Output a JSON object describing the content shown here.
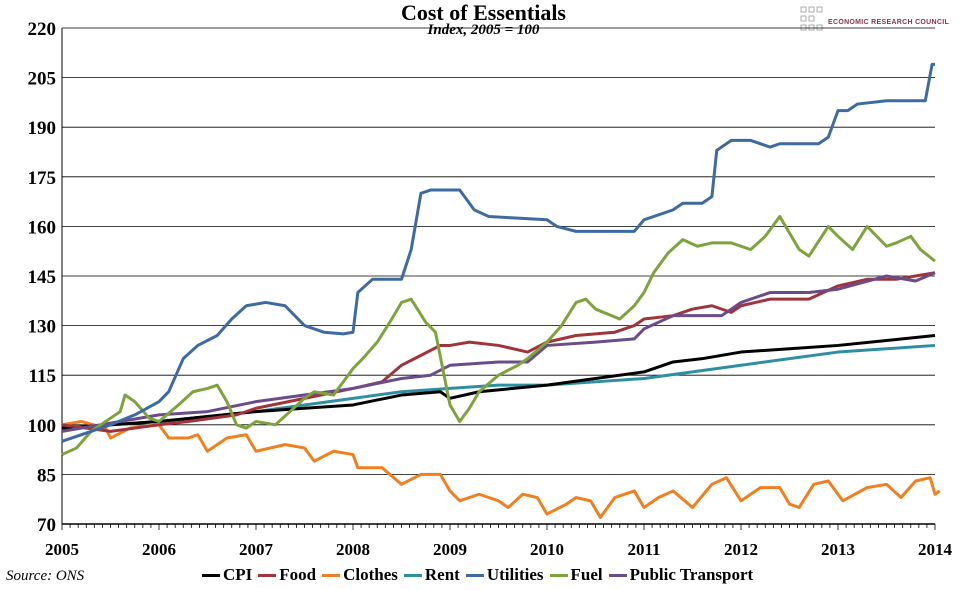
{
  "chart_data": {
    "type": "line",
    "title": "Cost of Essentials",
    "subtitle": "Index, 2005 = 100",
    "source": "Source: ONS",
    "logo_text": "ECONOMIC RESEARCH COUNCIL",
    "xlim": [
      2005,
      2014
    ],
    "ylim": [
      70,
      220
    ],
    "yticks": [
      70,
      85,
      100,
      115,
      130,
      145,
      160,
      175,
      190,
      205,
      220
    ],
    "xticks": [
      2005,
      2006,
      2007,
      2008,
      2009,
      2010,
      2011,
      2012,
      2013,
      2014
    ],
    "grid": "horizontal",
    "legend_position": "bottom",
    "series": [
      {
        "name": "CPI",
        "color": "#000000",
        "points": [
          [
            2005,
            99
          ],
          [
            2006,
            101
          ],
          [
            2007,
            104
          ],
          [
            2007.5,
            105
          ],
          [
            2008,
            106
          ],
          [
            2008.5,
            109
          ],
          [
            2008.9,
            110
          ],
          [
            2009,
            108
          ],
          [
            2009.3,
            110
          ],
          [
            2010,
            112
          ],
          [
            2010.5,
            114
          ],
          [
            2011,
            116
          ],
          [
            2011.3,
            119
          ],
          [
            2011.6,
            120
          ],
          [
            2012,
            122
          ],
          [
            2012.5,
            123
          ],
          [
            2013,
            124
          ],
          [
            2013.5,
            125.5
          ],
          [
            2014,
            127
          ]
        ]
      },
      {
        "name": "Food",
        "color": "#a0343b",
        "points": [
          [
            2005,
            100
          ],
          [
            2005.5,
            98
          ],
          [
            2006,
            100
          ],
          [
            2006.3,
            101
          ],
          [
            2006.8,
            103
          ],
          [
            2007,
            105
          ],
          [
            2007.5,
            108
          ],
          [
            2008,
            111
          ],
          [
            2008.3,
            113
          ],
          [
            2008.5,
            118
          ],
          [
            2008.7,
            121
          ],
          [
            2008.9,
            124
          ],
          [
            2009,
            124
          ],
          [
            2009.2,
            125
          ],
          [
            2009.5,
            124
          ],
          [
            2009.8,
            122
          ],
          [
            2010,
            125
          ],
          [
            2010.3,
            127
          ],
          [
            2010.7,
            128
          ],
          [
            2010.9,
            130
          ],
          [
            2011,
            132
          ],
          [
            2011.3,
            133
          ],
          [
            2011.5,
            135
          ],
          [
            2011.7,
            136
          ],
          [
            2011.9,
            134
          ],
          [
            2012,
            136
          ],
          [
            2012.3,
            138
          ],
          [
            2012.7,
            138
          ],
          [
            2013,
            142
          ],
          [
            2013.3,
            144
          ],
          [
            2013.6,
            144
          ],
          [
            2013.8,
            145
          ],
          [
            2014,
            146
          ]
        ]
      },
      {
        "name": "Clothes",
        "color": "#f07f1f",
        "points": [
          [
            2005,
            100
          ],
          [
            2005.2,
            101
          ],
          [
            2005.45,
            99
          ],
          [
            2005.5,
            96
          ],
          [
            2005.7,
            99
          ],
          [
            2006,
            100
          ],
          [
            2006.1,
            96
          ],
          [
            2006.3,
            96
          ],
          [
            2006.4,
            97
          ],
          [
            2006.5,
            92
          ],
          [
            2006.7,
            96
          ],
          [
            2006.9,
            97
          ],
          [
            2007,
            92
          ],
          [
            2007.3,
            94
          ],
          [
            2007.5,
            93
          ],
          [
            2007.6,
            89
          ],
          [
            2007.8,
            92
          ],
          [
            2008,
            91
          ],
          [
            2008.05,
            87
          ],
          [
            2008.3,
            87
          ],
          [
            2008.5,
            82
          ],
          [
            2008.7,
            85
          ],
          [
            2008.9,
            85
          ],
          [
            2009,
            80
          ],
          [
            2009.1,
            77
          ],
          [
            2009.3,
            79
          ],
          [
            2009.5,
            77
          ],
          [
            2009.6,
            75
          ],
          [
            2009.75,
            79
          ],
          [
            2009.9,
            78
          ],
          [
            2010,
            73
          ],
          [
            2010.2,
            76
          ],
          [
            2010.3,
            78
          ],
          [
            2010.45,
            77
          ],
          [
            2010.55,
            72
          ],
          [
            2010.7,
            78
          ],
          [
            2010.9,
            80
          ],
          [
            2011,
            75
          ],
          [
            2011.15,
            78
          ],
          [
            2011.3,
            80
          ],
          [
            2011.5,
            75
          ],
          [
            2011.7,
            82
          ],
          [
            2011.85,
            84
          ],
          [
            2012,
            77
          ],
          [
            2012.2,
            81
          ],
          [
            2012.4,
            81
          ],
          [
            2012.5,
            76
          ],
          [
            2012.6,
            75
          ],
          [
            2012.75,
            82
          ],
          [
            2012.9,
            83
          ],
          [
            2013.05,
            77
          ],
          [
            2013.3,
            81
          ],
          [
            2013.5,
            82
          ],
          [
            2013.65,
            78
          ],
          [
            2013.8,
            83
          ],
          [
            2013.95,
            84
          ],
          [
            2014,
            79
          ],
          [
            2014.05,
            80
          ]
        ]
      },
      {
        "name": "Rent",
        "color": "#2e8fa3",
        "points": [
          [
            2005,
            99
          ],
          [
            2006,
            101
          ],
          [
            2007,
            104
          ],
          [
            2007.5,
            106
          ],
          [
            2008,
            108
          ],
          [
            2008.5,
            110
          ],
          [
            2009,
            111
          ],
          [
            2009.5,
            112
          ],
          [
            2010,
            112
          ],
          [
            2010.5,
            113
          ],
          [
            2011,
            114
          ],
          [
            2011.5,
            116
          ],
          [
            2012,
            118
          ],
          [
            2012.5,
            120
          ],
          [
            2013,
            122
          ],
          [
            2013.5,
            123
          ],
          [
            2014,
            124
          ]
        ]
      },
      {
        "name": "Utilities",
        "color": "#3d6aa0",
        "points": [
          [
            2005,
            95
          ],
          [
            2005.5,
            100
          ],
          [
            2005.75,
            103
          ],
          [
            2006,
            107
          ],
          [
            2006.1,
            110
          ],
          [
            2006.25,
            120
          ],
          [
            2006.4,
            124
          ],
          [
            2006.6,
            127
          ],
          [
            2006.75,
            132
          ],
          [
            2006.9,
            136
          ],
          [
            2007.1,
            137
          ],
          [
            2007.3,
            136
          ],
          [
            2007.5,
            130
          ],
          [
            2007.7,
            128
          ],
          [
            2007.9,
            127.5
          ],
          [
            2008,
            128
          ],
          [
            2008.05,
            140
          ],
          [
            2008.2,
            144
          ],
          [
            2008.5,
            144
          ],
          [
            2008.6,
            153
          ],
          [
            2008.7,
            170
          ],
          [
            2008.8,
            171
          ],
          [
            2009.1,
            171
          ],
          [
            2009.25,
            165
          ],
          [
            2009.4,
            163
          ],
          [
            2009.7,
            162.5
          ],
          [
            2010,
            162
          ],
          [
            2010.1,
            160
          ],
          [
            2010.3,
            158.5
          ],
          [
            2010.9,
            158.5
          ],
          [
            2011,
            162
          ],
          [
            2011.3,
            165
          ],
          [
            2011.4,
            167
          ],
          [
            2011.6,
            167
          ],
          [
            2011.7,
            169
          ],
          [
            2011.75,
            183
          ],
          [
            2011.9,
            186
          ],
          [
            2012.1,
            186
          ],
          [
            2012.3,
            184
          ],
          [
            2012.4,
            185
          ],
          [
            2012.8,
            185
          ],
          [
            2012.9,
            187
          ],
          [
            2013,
            195
          ],
          [
            2013.1,
            195
          ],
          [
            2013.2,
            197
          ],
          [
            2013.5,
            198
          ],
          [
            2013.9,
            198
          ],
          [
            2013.97,
            209
          ],
          [
            2014,
            209
          ]
        ]
      },
      {
        "name": "Fuel",
        "color": "#7ea33c",
        "points": [
          [
            2005,
            91
          ],
          [
            2005.15,
            93
          ],
          [
            2005.3,
            98
          ],
          [
            2005.5,
            102
          ],
          [
            2005.6,
            104
          ],
          [
            2005.65,
            109
          ],
          [
            2005.75,
            107
          ],
          [
            2005.9,
            102
          ],
          [
            2006,
            101
          ],
          [
            2006.2,
            106
          ],
          [
            2006.35,
            110
          ],
          [
            2006.5,
            111
          ],
          [
            2006.6,
            112
          ],
          [
            2006.7,
            107
          ],
          [
            2006.8,
            100
          ],
          [
            2006.9,
            99
          ],
          [
            2007,
            101
          ],
          [
            2007.2,
            100
          ],
          [
            2007.35,
            104
          ],
          [
            2007.5,
            108
          ],
          [
            2007.6,
            110
          ],
          [
            2007.8,
            109
          ],
          [
            2008,
            117
          ],
          [
            2008.1,
            120
          ],
          [
            2008.25,
            125
          ],
          [
            2008.4,
            132
          ],
          [
            2008.5,
            137
          ],
          [
            2008.6,
            138
          ],
          [
            2008.75,
            131
          ],
          [
            2008.85,
            128
          ],
          [
            2009,
            106
          ],
          [
            2009.1,
            101
          ],
          [
            2009.2,
            105
          ],
          [
            2009.3,
            110
          ],
          [
            2009.5,
            115
          ],
          [
            2009.7,
            118
          ],
          [
            2009.8,
            120
          ],
          [
            2010,
            125
          ],
          [
            2010.15,
            130
          ],
          [
            2010.3,
            137
          ],
          [
            2010.4,
            138
          ],
          [
            2010.5,
            135
          ],
          [
            2010.75,
            132
          ],
          [
            2010.9,
            136
          ],
          [
            2011,
            140
          ],
          [
            2011.1,
            146
          ],
          [
            2011.25,
            152
          ],
          [
            2011.4,
            156
          ],
          [
            2011.55,
            154
          ],
          [
            2011.7,
            155
          ],
          [
            2011.9,
            155
          ],
          [
            2012.1,
            153
          ],
          [
            2012.25,
            157
          ],
          [
            2012.4,
            163
          ],
          [
            2012.5,
            158
          ],
          [
            2012.6,
            153
          ],
          [
            2012.7,
            151
          ],
          [
            2012.9,
            160
          ],
          [
            2013,
            157
          ],
          [
            2013.15,
            153
          ],
          [
            2013.3,
            160
          ],
          [
            2013.5,
            154
          ],
          [
            2013.6,
            155
          ],
          [
            2013.75,
            157
          ],
          [
            2013.85,
            153
          ],
          [
            2014,
            149.5
          ]
        ]
      },
      {
        "name": "Public Transport",
        "color": "#6b4c8a",
        "points": [
          [
            2005,
            98
          ],
          [
            2006,
            103
          ],
          [
            2006.5,
            104
          ],
          [
            2007,
            107
          ],
          [
            2007.5,
            109
          ],
          [
            2008,
            111
          ],
          [
            2008.5,
            114
          ],
          [
            2008.8,
            115
          ],
          [
            2009,
            118
          ],
          [
            2009.5,
            119
          ],
          [
            2009.8,
            119
          ],
          [
            2010,
            124
          ],
          [
            2010.5,
            125
          ],
          [
            2010.9,
            126
          ],
          [
            2011,
            129
          ],
          [
            2011.3,
            133
          ],
          [
            2011.6,
            133
          ],
          [
            2011.8,
            133
          ],
          [
            2012,
            137
          ],
          [
            2012.3,
            140
          ],
          [
            2012.7,
            140
          ],
          [
            2013,
            141
          ],
          [
            2013.5,
            145
          ],
          [
            2013.8,
            143.5
          ],
          [
            2014,
            146
          ]
        ]
      }
    ]
  }
}
